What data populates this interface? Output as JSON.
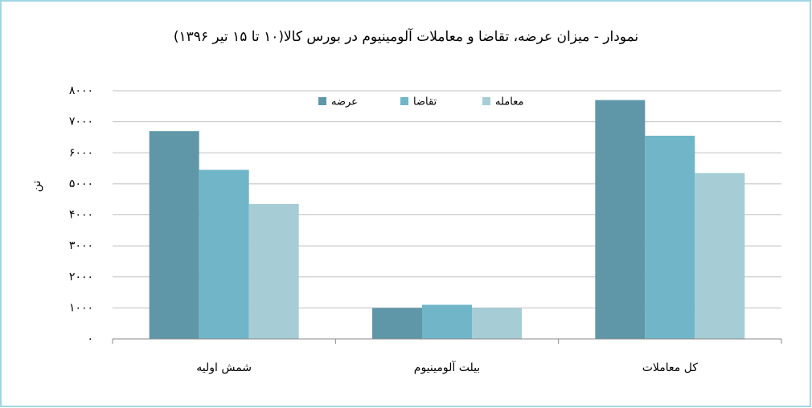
{
  "chart_data": {
    "type": "bar",
    "title": "نمودار - میزان عرضه، تقاضا و معاملات آلومینیوم در بورس کالا(۱۰ تا ۱۵ تیر ۱۳۹۶)",
    "y_label": "تن",
    "categories": [
      "شمش اولیه",
      "بیلت آلومینیوم",
      "کل معاملات"
    ],
    "series": [
      {
        "name": "عرضه",
        "color": "#5f97a8",
        "values": [
          6700,
          1000,
          7700
        ]
      },
      {
        "name": "تقاضا",
        "color": "#70b6c8",
        "values": [
          5450,
          1100,
          6550
        ]
      },
      {
        "name": "معامله",
        "color": "#a6cdd6",
        "values": [
          4350,
          1000,
          5350
        ]
      }
    ],
    "ylim": [
      0,
      8000
    ],
    "yticks": [
      {
        "value": 0,
        "label": "۰"
      },
      {
        "value": 1000,
        "label": "۱۰۰۰"
      },
      {
        "value": 2000,
        "label": "۲۰۰۰"
      },
      {
        "value": 3000,
        "label": "۳۰۰۰"
      },
      {
        "value": 4000,
        "label": "۴۰۰۰"
      },
      {
        "value": 5000,
        "label": "۵۰۰۰"
      },
      {
        "value": 6000,
        "label": "۶۰۰۰"
      },
      {
        "value": 7000,
        "label": "۷۰۰۰"
      },
      {
        "value": 8000,
        "label": "۸۰۰۰"
      }
    ],
    "grid": true,
    "legend": "top"
  }
}
